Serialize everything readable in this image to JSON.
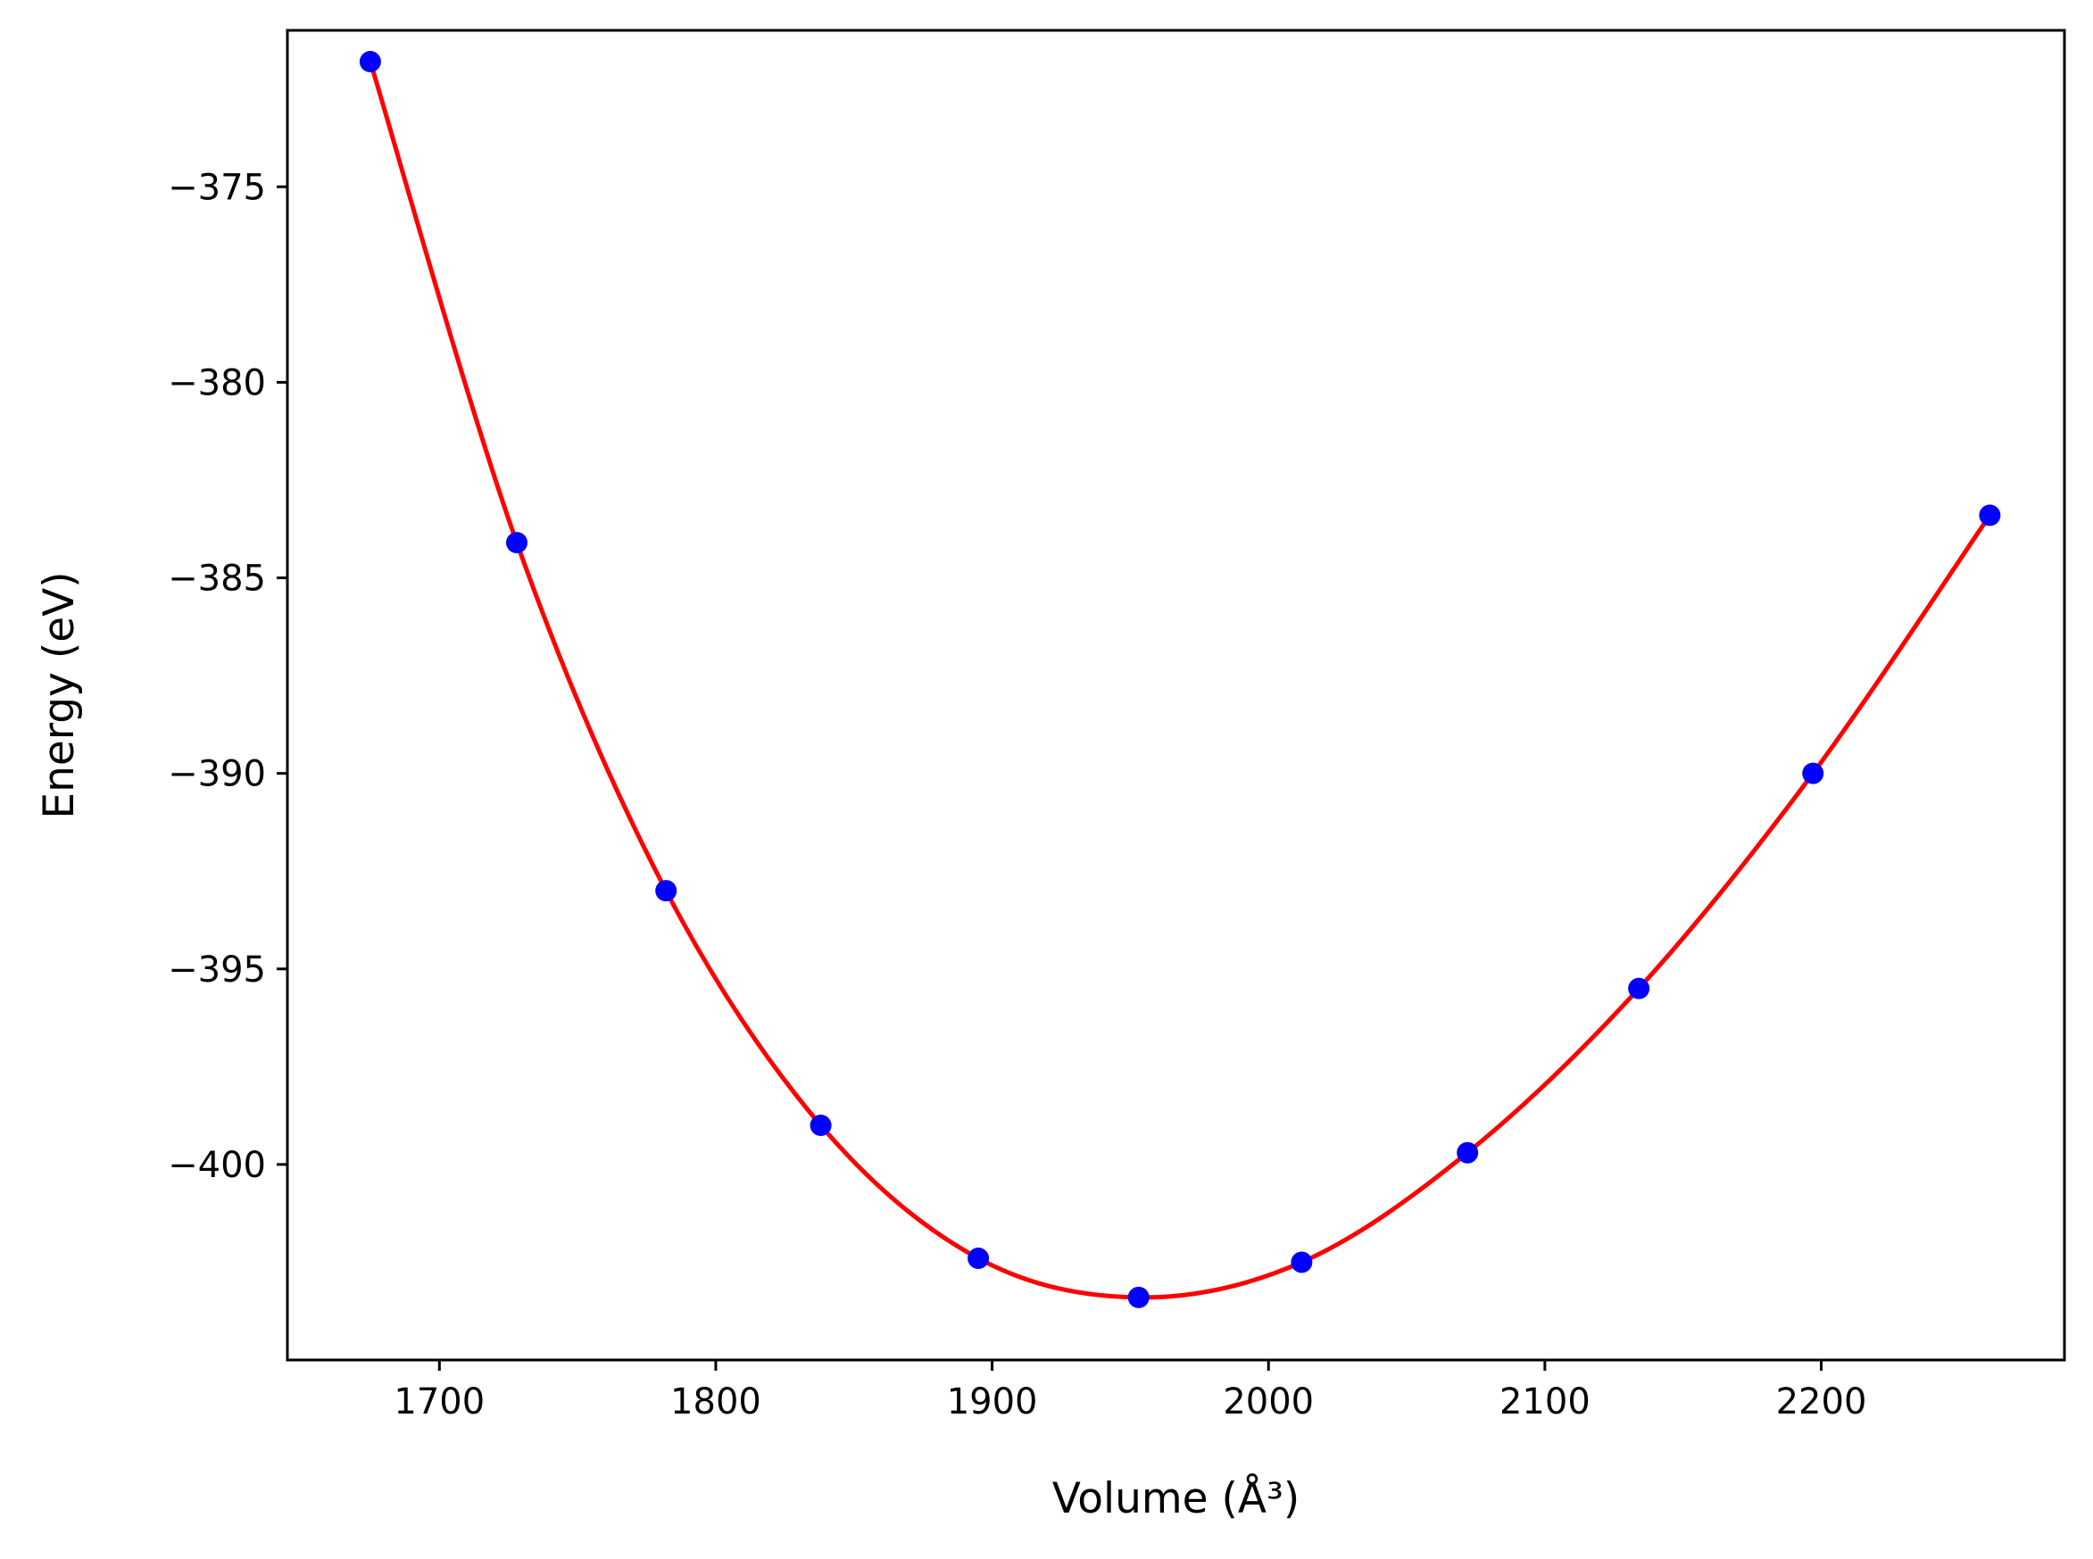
{
  "chart_data": {
    "type": "scatter",
    "xlabel": "Volume (Å³)",
    "ylabel": "Energy (eV)",
    "xlim": [
      1645,
      2288
    ],
    "ylim": [
      -405.0,
      -371.0
    ],
    "xticks": [
      1700,
      1800,
      1900,
      2000,
      2100,
      2200
    ],
    "yticks": [
      -375,
      -380,
      -385,
      -390,
      -395,
      -400
    ],
    "xtick_labels": [
      "1700",
      "1800",
      "1900",
      "2000",
      "2100",
      "2200"
    ],
    "ytick_labels": [
      "−375",
      "−380",
      "−385",
      "−390",
      "−395",
      "−400"
    ],
    "grid": false,
    "series": [
      {
        "kind": "points",
        "color": "#0000ff",
        "x": [
          1675,
          1728,
          1782,
          1838,
          1895,
          1953,
          2012,
          2072,
          2134,
          2197,
          2261
        ],
        "y": [
          -371.8,
          -384.1,
          -393.0,
          -399.0,
          -402.4,
          -403.4,
          -402.5,
          -399.7,
          -395.5,
          -390.0,
          -383.4
        ]
      },
      {
        "kind": "fit-curve",
        "color": "#ff0000",
        "x": [
          1675,
          1728,
          1782,
          1838,
          1895,
          1953,
          2012,
          2072,
          2134,
          2197,
          2261
        ],
        "y": [
          -371.8,
          -384.1,
          -393.0,
          -399.0,
          -402.4,
          -403.4,
          -402.5,
          -399.7,
          -395.5,
          -390.0,
          -383.4
        ]
      }
    ]
  }
}
